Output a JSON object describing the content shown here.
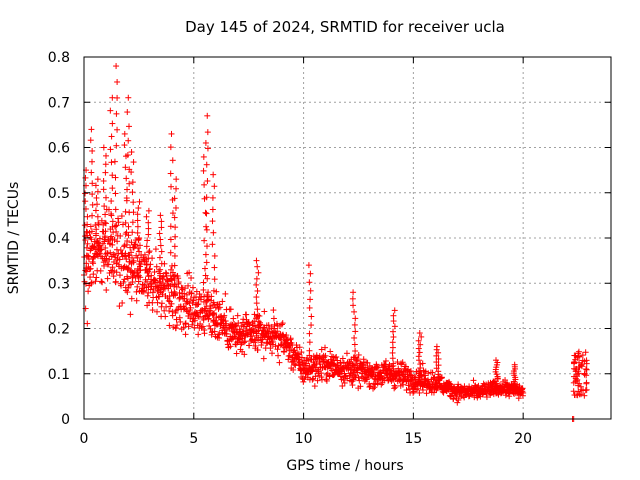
{
  "chart_data": {
    "type": "scatter",
    "title": "Day 145 of 2024, SRMTID for receiver ucla",
    "xlabel": "GPS time / hours",
    "ylabel": "SRMTID / TECUs",
    "xlim": [
      0,
      24
    ],
    "ylim": [
      0,
      0.8
    ],
    "xticks": [
      0,
      5,
      10,
      15,
      20
    ],
    "yticks": [
      0,
      0.1,
      0.2,
      0.3,
      0.4,
      0.5,
      0.6,
      0.7,
      0.8
    ],
    "xtick_labels": [
      "0",
      "5",
      "10",
      "15",
      "20"
    ],
    "ytick_labels": [
      "0",
      "0.1",
      "0.2",
      "0.3",
      "0.4",
      "0.5",
      "0.6",
      "0.7",
      "0.8"
    ],
    "grid": true,
    "marker": "+",
    "color": "#ff0000",
    "series": [
      {
        "name": "SRMTID",
        "trend_profile": [
          {
            "x": 0.0,
            "median": 0.34,
            "spread": 0.17
          },
          {
            "x": 1.0,
            "median": 0.38,
            "spread": 0.17
          },
          {
            "x": 2.0,
            "median": 0.33,
            "spread": 0.15
          },
          {
            "x": 3.0,
            "median": 0.3,
            "spread": 0.12
          },
          {
            "x": 4.0,
            "median": 0.28,
            "spread": 0.12
          },
          {
            "x": 5.0,
            "median": 0.25,
            "spread": 0.11
          },
          {
            "x": 6.0,
            "median": 0.23,
            "spread": 0.11
          },
          {
            "x": 7.0,
            "median": 0.18,
            "spread": 0.08
          },
          {
            "x": 8.0,
            "median": 0.19,
            "spread": 0.07
          },
          {
            "x": 9.0,
            "median": 0.18,
            "spread": 0.07
          },
          {
            "x": 10.0,
            "median": 0.11,
            "spread": 0.06
          },
          {
            "x": 11.0,
            "median": 0.12,
            "spread": 0.06
          },
          {
            "x": 12.0,
            "median": 0.11,
            "spread": 0.06
          },
          {
            "x": 13.0,
            "median": 0.1,
            "spread": 0.05
          },
          {
            "x": 14.0,
            "median": 0.1,
            "spread": 0.05
          },
          {
            "x": 15.0,
            "median": 0.09,
            "spread": 0.05
          },
          {
            "x": 16.0,
            "median": 0.08,
            "spread": 0.04
          },
          {
            "x": 17.0,
            "median": 0.06,
            "spread": 0.03
          },
          {
            "x": 18.0,
            "median": 0.06,
            "spread": 0.03
          },
          {
            "x": 19.0,
            "median": 0.07,
            "spread": 0.03
          },
          {
            "x": 20.0,
            "median": 0.06,
            "spread": 0.03
          }
        ],
        "peaks": [
          {
            "x": 0.1,
            "y": 0.55
          },
          {
            "x": 0.35,
            "y": 0.64
          },
          {
            "x": 0.6,
            "y": 0.53
          },
          {
            "x": 0.95,
            "y": 0.6
          },
          {
            "x": 1.25,
            "y": 0.71
          },
          {
            "x": 1.45,
            "y": 0.78
          },
          {
            "x": 1.9,
            "y": 0.63
          },
          {
            "x": 2.0,
            "y": 0.71
          },
          {
            "x": 2.2,
            "y": 0.59
          },
          {
            "x": 2.5,
            "y": 0.48
          },
          {
            "x": 2.9,
            "y": 0.46
          },
          {
            "x": 3.5,
            "y": 0.45
          },
          {
            "x": 4.0,
            "y": 0.63
          },
          {
            "x": 4.15,
            "y": 0.53
          },
          {
            "x": 5.5,
            "y": 0.61
          },
          {
            "x": 5.6,
            "y": 0.67
          },
          {
            "x": 5.9,
            "y": 0.54
          },
          {
            "x": 7.9,
            "y": 0.35
          },
          {
            "x": 10.3,
            "y": 0.34
          },
          {
            "x": 12.3,
            "y": 0.28
          },
          {
            "x": 14.1,
            "y": 0.24
          },
          {
            "x": 15.3,
            "y": 0.19
          },
          {
            "x": 16.1,
            "y": 0.16
          },
          {
            "x": 18.8,
            "y": 0.13
          },
          {
            "x": 19.6,
            "y": 0.12
          }
        ],
        "late_cluster": {
          "x_range": [
            22.3,
            22.9
          ],
          "y_range": [
            0.05,
            0.15
          ]
        },
        "isolated_points": [
          {
            "x": 22.25,
            "y": 0.0
          },
          {
            "x": 22.3,
            "y": 0.0
          }
        ]
      }
    ]
  }
}
